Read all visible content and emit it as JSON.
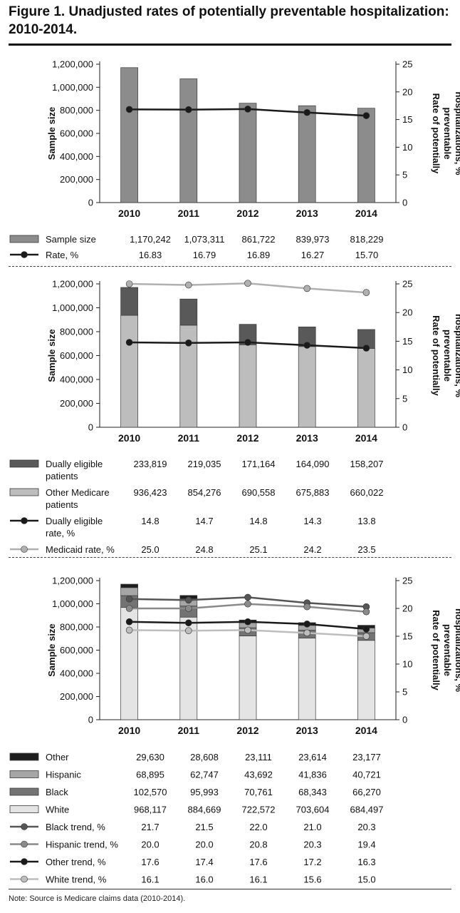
{
  "figure": {
    "title": "Figure 1. Unadjusted rates of potentially preventable hospitalization: 2010-2014.",
    "note": "Note: Source is Medicare claims data (2010-2014)."
  },
  "chart_data": [
    {
      "type": "bar",
      "categories": [
        "2010",
        "2011",
        "2012",
        "2013",
        "2014"
      ],
      "ylabel": "Sample size",
      "y2label": "Rate of potentially preventable hospitalizations, %",
      "ylim": [
        0,
        1200000
      ],
      "y2lim": [
        0,
        25
      ],
      "yticks": [
        "0",
        "200,000",
        "400,000",
        "600,000",
        "800,000",
        "1,000,000",
        "1,200,000"
      ],
      "y2ticks": [
        "0",
        "5",
        "10",
        "15",
        "20",
        "25"
      ],
      "stack": [
        "Sample size"
      ],
      "lines": [
        "Rate, %"
      ],
      "series": [
        {
          "name": "Sample size",
          "kind": "bar",
          "color": "#8c8c8c",
          "values": [
            1170242,
            1073311,
            861722,
            839973,
            818229
          ],
          "labels": [
            "1,170,242",
            "1,073,311",
            "861,722",
            "839,973",
            "818,229"
          ]
        },
        {
          "name": "Rate, %",
          "kind": "line",
          "color": "#1a1a1a",
          "values": [
            16.83,
            16.79,
            16.89,
            16.27,
            15.7
          ],
          "labels": [
            "16.83",
            "16.79",
            "16.89",
            "16.27",
            "15.70"
          ]
        }
      ],
      "legend_order": [
        "Sample size",
        "Rate, %"
      ]
    },
    {
      "type": "bar",
      "categories": [
        "2010",
        "2011",
        "2012",
        "2013",
        "2014"
      ],
      "ylabel": "Sample size",
      "y2label": "Rate of potentially preventable hospitalizations, %",
      "ylim": [
        0,
        1200000
      ],
      "y2lim": [
        0,
        25
      ],
      "yticks": [
        "0",
        "200,000",
        "400,000",
        "600,000",
        "800,000",
        "1,000,000",
        "1,200,000"
      ],
      "y2ticks": [
        "0",
        "5",
        "10",
        "15",
        "20",
        "25"
      ],
      "stack": [
        "Other Medicare patients",
        "Dually eligible patients"
      ],
      "lines": [
        "Dually eligible rate, %",
        "Medicaid rate, %"
      ],
      "series": [
        {
          "name": "Dually eligible patients",
          "kind": "bar",
          "color": "#595959",
          "values": [
            233819,
            219035,
            171164,
            164090,
            158207
          ],
          "labels": [
            "233,819",
            "219,035",
            "171,164",
            "164,090",
            "158,207"
          ]
        },
        {
          "name": "Other Medicare patients",
          "kind": "bar",
          "color": "#bdbdbd",
          "values": [
            936423,
            854276,
            690558,
            675883,
            660022
          ],
          "labels": [
            "936,423",
            "854,276",
            "690,558",
            "675,883",
            "660,022"
          ]
        },
        {
          "name": "Dually eligible rate, %",
          "kind": "line",
          "color": "#1a1a1a",
          "values": [
            14.8,
            14.7,
            14.8,
            14.3,
            13.8
          ],
          "labels": [
            "14.8",
            "14.7",
            "14.8",
            "14.3",
            "13.8"
          ]
        },
        {
          "name": "Medicaid rate, %",
          "kind": "line",
          "color": "#b0b0b0",
          "values": [
            25.0,
            24.8,
            25.1,
            24.2,
            23.5
          ],
          "labels": [
            "25.0",
            "24.8",
            "25.1",
            "24.2",
            "23.5"
          ]
        }
      ],
      "legend_order": [
        "Dually eligible patients",
        "Other Medicare patients",
        "Dually eligible rate, %",
        "Medicaid rate, %"
      ]
    },
    {
      "type": "bar",
      "categories": [
        "2010",
        "2011",
        "2012",
        "2013",
        "2014"
      ],
      "ylabel": "Sample size",
      "y2label": "Rate of potentially preventable hospitalizations, %",
      "ylim": [
        0,
        1200000
      ],
      "y2lim": [
        0,
        25
      ],
      "yticks": [
        "0",
        "200,000",
        "400,000",
        "600,000",
        "800,000",
        "1,000,000",
        "1,200,000"
      ],
      "y2ticks": [
        "0",
        "5",
        "10",
        "15",
        "20",
        "25"
      ],
      "stack": [
        "White",
        "Black",
        "Hispanic",
        "Other"
      ],
      "lines": [
        "Black trend, %",
        "Hispanic trend, %",
        "Other trend, %",
        "White trend, %"
      ],
      "series": [
        {
          "name": "Other",
          "kind": "bar",
          "color": "#1e1e1e",
          "values": [
            29630,
            28608,
            23111,
            23614,
            23177
          ],
          "labels": [
            "29,630",
            "28,608",
            "23,111",
            "23,614",
            "23,177"
          ]
        },
        {
          "name": "Hispanic",
          "kind": "bar",
          "color": "#a6a6a6",
          "values": [
            68895,
            62747,
            43692,
            41836,
            40721
          ],
          "labels": [
            "68,895",
            "62,747",
            "43,692",
            "41,836",
            "40,721"
          ]
        },
        {
          "name": "Black",
          "kind": "bar",
          "color": "#737373",
          "values": [
            102570,
            95993,
            70761,
            68343,
            66270
          ],
          "labels": [
            "102,570",
            "95,993",
            "70,761",
            "68,343",
            "66,270"
          ]
        },
        {
          "name": "White",
          "kind": "bar",
          "color": "#e4e4e4",
          "values": [
            968117,
            884669,
            722572,
            703604,
            684497
          ],
          "labels": [
            "968,117",
            "884,669",
            "722,572",
            "703,604",
            "684,497"
          ]
        },
        {
          "name": "Black trend, %",
          "kind": "line",
          "color": "#555555",
          "values": [
            21.7,
            21.5,
            22.0,
            21.0,
            20.3
          ],
          "labels": [
            "21.7",
            "21.5",
            "22.0",
            "21.0",
            "20.3"
          ]
        },
        {
          "name": "Hispanic trend, %",
          "kind": "line",
          "color": "#8a8a8a",
          "values": [
            20.0,
            20.0,
            20.8,
            20.3,
            19.4
          ],
          "labels": [
            "20.0",
            "20.0",
            "20.8",
            "20.3",
            "19.4"
          ]
        },
        {
          "name": "Other trend, %",
          "kind": "line",
          "color": "#1a1a1a",
          "values": [
            17.6,
            17.4,
            17.6,
            17.2,
            16.3
          ],
          "labels": [
            "17.6",
            "17.4",
            "17.6",
            "17.2",
            "16.3"
          ]
        },
        {
          "name": "White trend, %",
          "kind": "line",
          "color": "#bdbdbd",
          "values": [
            16.1,
            16.0,
            16.1,
            15.6,
            15.0
          ],
          "labels": [
            "16.1",
            "16.0",
            "16.1",
            "15.6",
            "15.0"
          ]
        }
      ],
      "legend_order": [
        "Other",
        "Hispanic",
        "Black",
        "White",
        "Black trend, %",
        "Hispanic trend, %",
        "Other trend, %",
        "White trend, %"
      ]
    }
  ]
}
